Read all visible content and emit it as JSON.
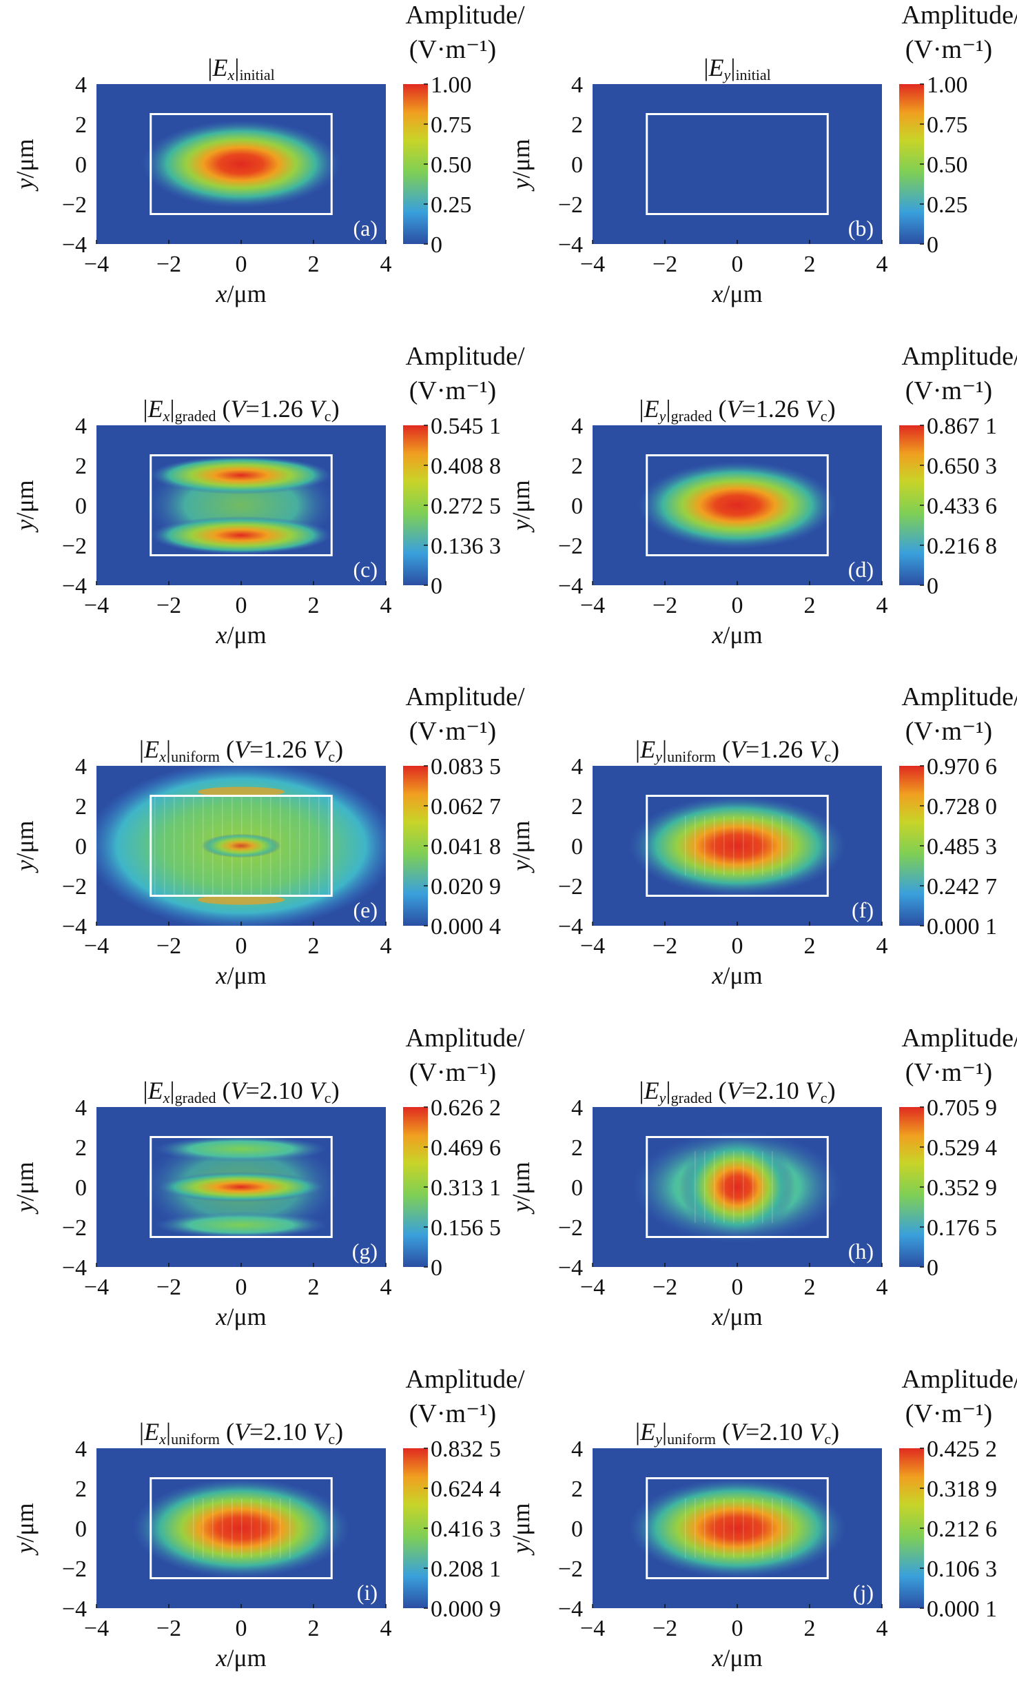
{
  "chart_data": {
    "type": "heatmap",
    "xlabel": "x/μm",
    "ylabel": "y/μm",
    "xlim": [
      -4,
      4
    ],
    "ylim": [
      -4,
      4
    ],
    "x_ticks": [
      "−4",
      "−2",
      "0",
      "2",
      "4"
    ],
    "y_ticks": [
      "4",
      "2",
      "0",
      "−2",
      "−4"
    ],
    "core_box": {
      "x": [
        -2.5,
        2.5
      ],
      "y": [
        -2.5,
        2.5
      ]
    },
    "colorbar_title_line1": "Amplitude/",
    "colorbar_title_line2": "(V·m⁻¹)",
    "colormap": [
      "#2b4ea3",
      "#3aa0dc",
      "#7fcf55",
      "#c8d428",
      "#f0a020",
      "#e02a20"
    ],
    "panels": [
      {
        "label": "(a)",
        "field": "|E",
        "sub_x": "x",
        "sub": "initial",
        "cond_text": "",
        "cond_V": "",
        "cond_c": "",
        "cbar": [
          "1.00",
          "0.75",
          "0.50",
          "0.25",
          "0"
        ],
        "pattern": "gauss"
      },
      {
        "label": "(b)",
        "field": "|E",
        "sub_x": "y",
        "sub": "initial",
        "cond_text": "",
        "cond_V": "",
        "cond_c": "",
        "cbar": [
          "1.00",
          "0.75",
          "0.50",
          "0.25",
          "0"
        ],
        "pattern": "empty"
      },
      {
        "label": "(c)",
        "field": "|E",
        "sub_x": "x",
        "sub": "graded",
        "cond_text": "(V=1.26 ",
        "cond_V": "V",
        "cond_c": "c",
        "cbar": [
          "0.545 1",
          "0.408 8",
          "0.272 5",
          "0.136 3",
          "0"
        ],
        "pattern": "twolobe"
      },
      {
        "label": "(d)",
        "field": "|E",
        "sub_x": "y",
        "sub": "graded",
        "cond_text": "(V=1.26 ",
        "cond_V": "V",
        "cond_c": "c",
        "cbar": [
          "0.867 1",
          "0.650 3",
          "0.433 6",
          "0.216 8",
          "0"
        ],
        "pattern": "gauss"
      },
      {
        "label": "(e)",
        "field": "|E",
        "sub_x": "x",
        "sub": "uniform",
        "cond_text": "(V=1.26 ",
        "cond_V": "V",
        "cond_c": "c",
        "cbar": [
          "0.083 5",
          "0.062 7",
          "0.041 8",
          "0.020 9",
          "0.000 4"
        ],
        "pattern": "noisy"
      },
      {
        "label": "(f)",
        "field": "|E",
        "sub_x": "y",
        "sub": "uniform",
        "cond_text": "(V=1.26 ",
        "cond_V": "V",
        "cond_c": "c",
        "cbar": [
          "0.970 6",
          "0.728 0",
          "0.485 3",
          "0.242 7",
          "0.000 1"
        ],
        "pattern": "gausswide"
      },
      {
        "label": "(g)",
        "field": "|E",
        "sub_x": "x",
        "sub": "graded",
        "cond_text": "(V=2.10 ",
        "cond_V": "V",
        "cond_c": "c",
        "cbar": [
          "0.626 2",
          "0.469 6",
          "0.313 1",
          "0.156 5",
          "0"
        ],
        "pattern": "threelobe"
      },
      {
        "label": "(h)",
        "field": "|E",
        "sub_x": "y",
        "sub": "graded",
        "cond_text": "(V=2.10 ",
        "cond_V": "V",
        "cond_c": "c",
        "cbar": [
          "0.705 9",
          "0.529 4",
          "0.352 9",
          "0.176 5",
          "0"
        ],
        "pattern": "tall"
      },
      {
        "label": "(i)",
        "field": "|E",
        "sub_x": "x",
        "sub": "uniform",
        "cond_text": "(V=2.10 ",
        "cond_V": "V",
        "cond_c": "c",
        "cbar": [
          "0.832 5",
          "0.624 4",
          "0.416 3",
          "0.208 1",
          "0.000 9"
        ],
        "pattern": "gausswide"
      },
      {
        "label": "(j)",
        "field": "|E",
        "sub_x": "y",
        "sub": "uniform",
        "cond_text": "(V=2.10 ",
        "cond_V": "V",
        "cond_c": "c",
        "cbar": [
          "0.425 2",
          "0.318 9",
          "0.212 6",
          "0.106 3",
          "0.000 1"
        ],
        "pattern": "gausswide"
      }
    ]
  }
}
